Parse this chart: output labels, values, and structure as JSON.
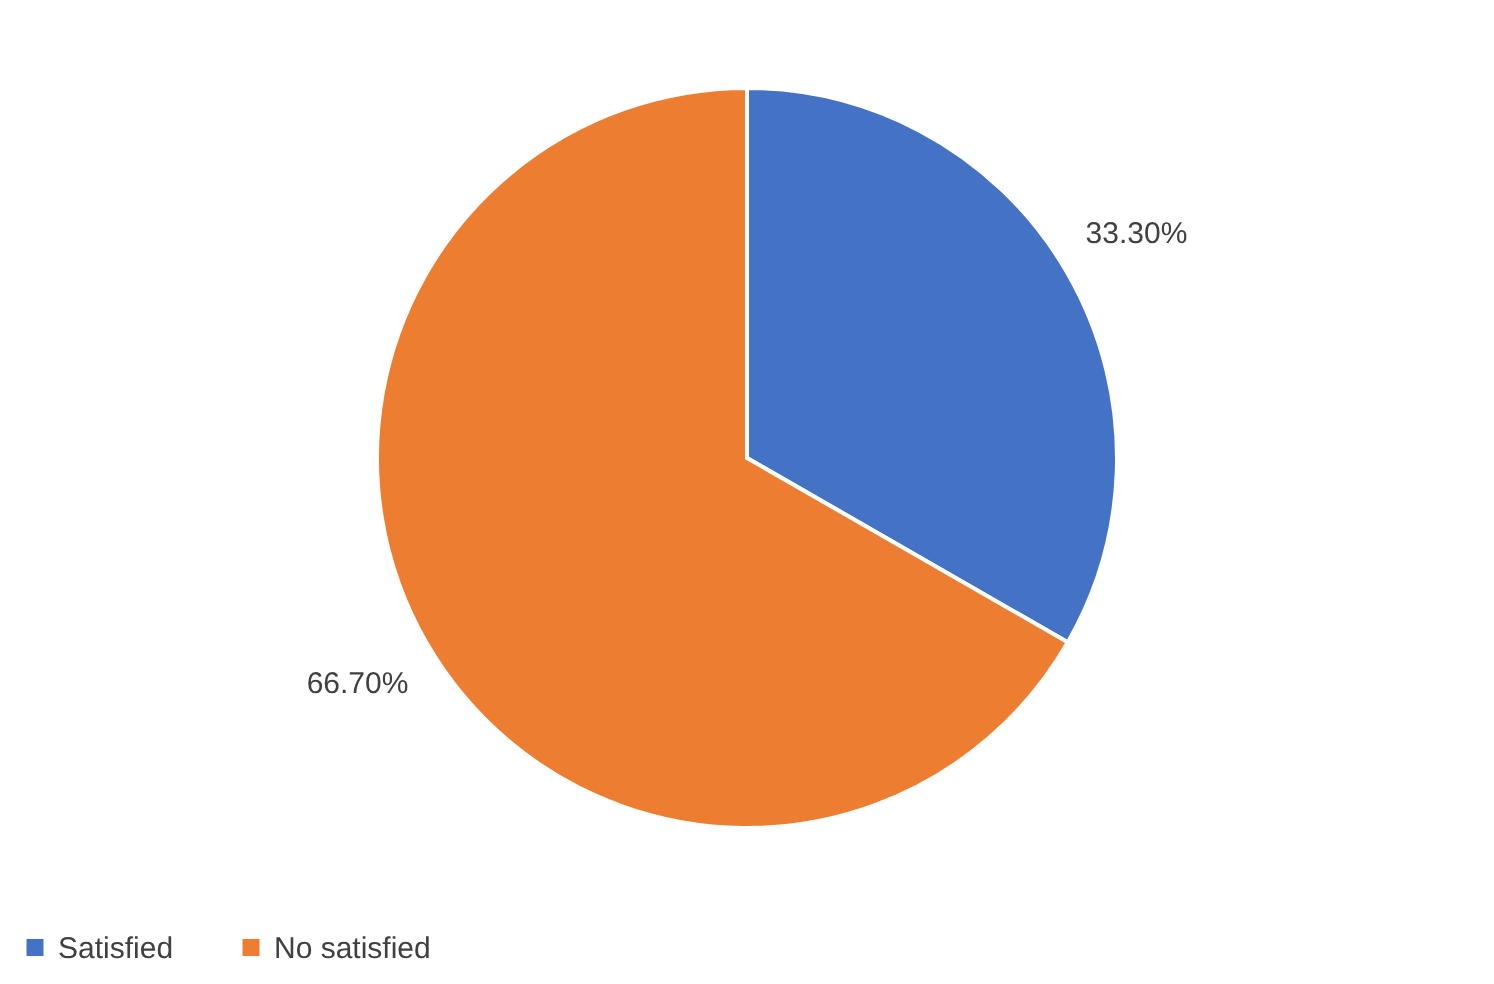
{
  "chart_data": {
    "type": "pie",
    "categories": [
      "Satisfied",
      "No satisfied"
    ],
    "values": [
      33.3,
      66.7
    ],
    "colors": [
      "#4472c4",
      "#ed7d31"
    ],
    "value_labels": [
      "33.30%",
      "66.70%"
    ],
    "legend": "bottom"
  }
}
